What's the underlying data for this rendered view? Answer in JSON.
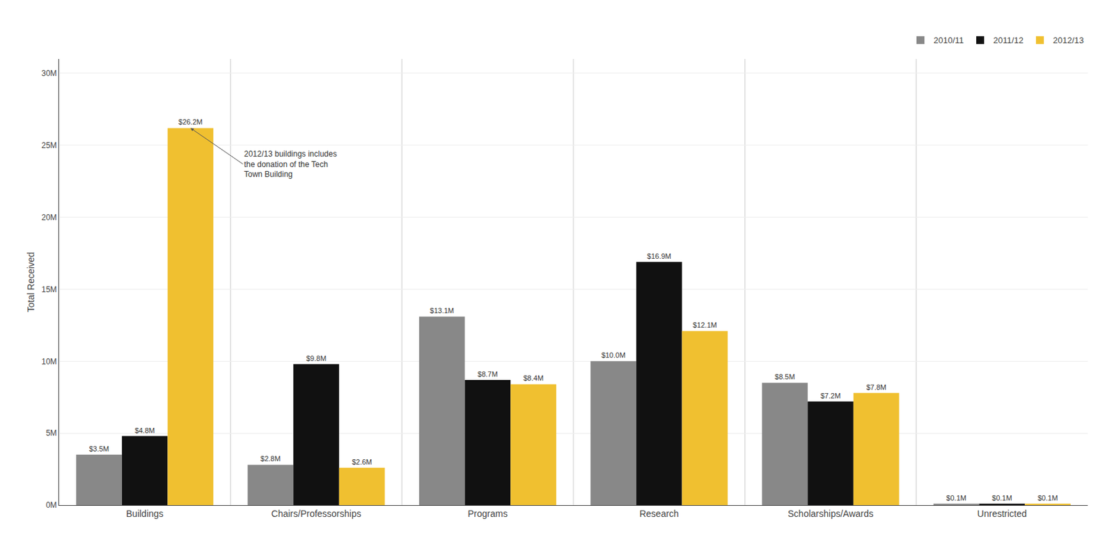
{
  "chart_data": {
    "type": "bar",
    "categories": [
      "Buildings",
      "Chairs/Professorships",
      "Programs",
      "Research",
      "Scholarships/Awards",
      "Unrestricted"
    ],
    "series": [
      {
        "name": "2010/11",
        "color": "#888888",
        "values": [
          3.5,
          2.8,
          13.1,
          10.0,
          8.5,
          0.1
        ],
        "value_labels": [
          "$3.5M",
          "$2.8M",
          "$13.1M",
          "$10.0M",
          "$8.5M",
          "$0.1M"
        ]
      },
      {
        "name": "2011/12",
        "color": "#111111",
        "values": [
          4.8,
          9.8,
          8.7,
          16.9,
          7.2,
          0.1
        ],
        "value_labels": [
          "$4.8M",
          "$9.8M",
          "$8.7M",
          "$16.9M",
          "$7.2M",
          "$0.1M"
        ]
      },
      {
        "name": "2012/13",
        "color": "#f0c030",
        "values": [
          26.2,
          2.6,
          8.4,
          12.1,
          7.8,
          0.1
        ],
        "value_labels": [
          "$26.2M",
          "$2.6M",
          "$8.4M",
          "$12.1M",
          "$7.8M",
          "$0.1M"
        ]
      }
    ],
    "ylabel": "Total Received",
    "ylim": [
      0,
      31
    ],
    "yticks": [
      {
        "value": 0,
        "label": "0M"
      },
      {
        "value": 5,
        "label": "5M"
      },
      {
        "value": 10,
        "label": "10M"
      },
      {
        "value": 15,
        "label": "15M"
      },
      {
        "value": 20,
        "label": "20M"
      },
      {
        "value": 25,
        "label": "25M"
      },
      {
        "value": 30,
        "label": "30M"
      }
    ],
    "grid": true,
    "legend": "upper right",
    "data_labels": true,
    "annotations": [
      {
        "text": "2012/13 buildings includes\nthe donation of the Tech\nTown Building",
        "category": "Buildings",
        "series": "2012/13"
      }
    ]
  }
}
